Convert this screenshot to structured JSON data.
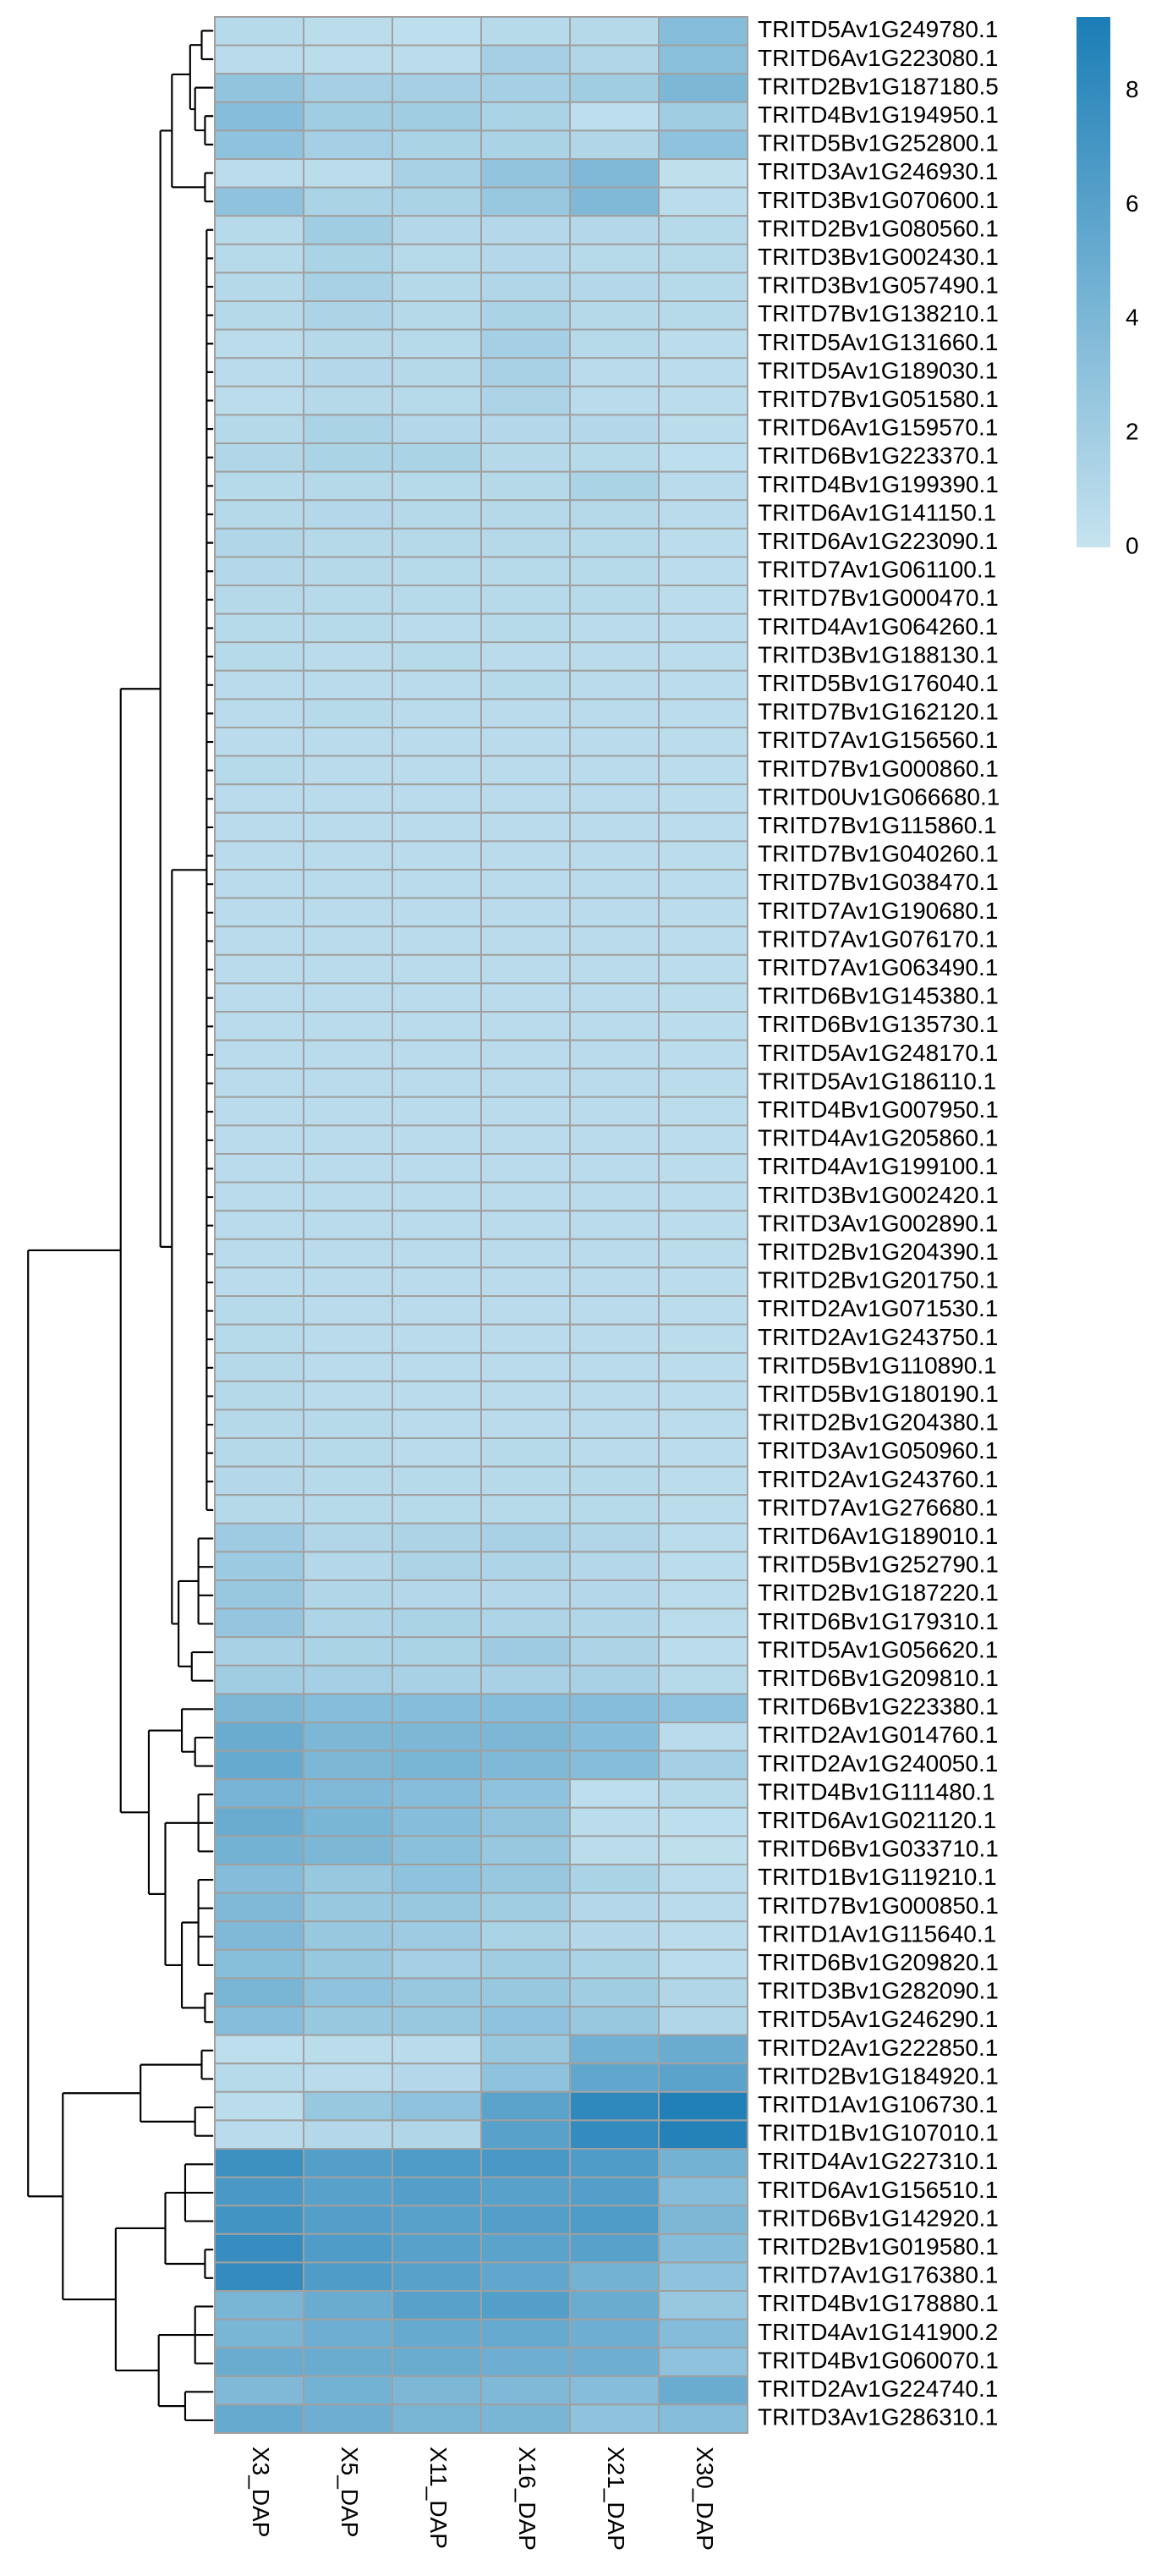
{
  "chart_data": {
    "type": "heatmap",
    "rows": [
      "TRITD5Av1G249780.1",
      "TRITD6Av1G223080.1",
      "TRITD2Bv1G187180.5",
      "TRITD4Bv1G194950.1",
      "TRITD5Bv1G252800.1",
      "TRITD3Av1G246930.1",
      "TRITD3Bv1G070600.1",
      "TRITD2Bv1G080560.1",
      "TRITD3Bv1G002430.1",
      "TRITD3Bv1G057490.1",
      "TRITD7Bv1G138210.1",
      "TRITD5Av1G131660.1",
      "TRITD5Av1G189030.1",
      "TRITD7Bv1G051580.1",
      "TRITD6Av1G159570.1",
      "TRITD6Bv1G223370.1",
      "TRITD4Bv1G199390.1",
      "TRITD6Av1G141150.1",
      "TRITD6Av1G223090.1",
      "TRITD7Av1G061100.1",
      "TRITD7Bv1G000470.1",
      "TRITD4Av1G064260.1",
      "TRITD3Bv1G188130.1",
      "TRITD5Bv1G176040.1",
      "TRITD7Bv1G162120.1",
      "TRITD7Av1G156560.1",
      "TRITD7Bv1G000860.1",
      "TRITD0Uv1G066680.1",
      "TRITD7Bv1G115860.1",
      "TRITD7Bv1G040260.1",
      "TRITD7Bv1G038470.1",
      "TRITD7Av1G190680.1",
      "TRITD7Av1G076170.1",
      "TRITD7Av1G063490.1",
      "TRITD6Bv1G145380.1",
      "TRITD6Bv1G135730.1",
      "TRITD5Av1G248170.1",
      "TRITD5Av1G186110.1",
      "TRITD4Bv1G007950.1",
      "TRITD4Av1G205860.1",
      "TRITD4Av1G199100.1",
      "TRITD3Bv1G002420.1",
      "TRITD3Av1G002890.1",
      "TRITD2Bv1G204390.1",
      "TRITD2Bv1G201750.1",
      "TRITD2Av1G071530.1",
      "TRITD2Av1G243750.1",
      "TRITD5Bv1G110890.1",
      "TRITD5Bv1G180190.1",
      "TRITD2Bv1G204380.1",
      "TRITD3Av1G050960.1",
      "TRITD2Av1G243760.1",
      "TRITD7Av1G276680.1",
      "TRITD6Av1G189010.1",
      "TRITD5Bv1G252790.1",
      "TRITD2Bv1G187220.1",
      "TRITD6Bv1G179310.1",
      "TRITD5Av1G056620.1",
      "TRITD6Bv1G209810.1",
      "TRITD6Bv1G223380.1",
      "TRITD2Av1G014760.1",
      "TRITD2Av1G240050.1",
      "TRITD4Bv1G111480.1",
      "TRITD6Av1G021120.1",
      "TRITD6Bv1G033710.1",
      "TRITD1Bv1G119210.1",
      "TRITD7Bv1G000850.1",
      "TRITD1Av1G115640.1",
      "TRITD6Bv1G209820.1",
      "TRITD3Bv1G282090.1",
      "TRITD5Av1G246290.1",
      "TRITD2Av1G222850.1",
      "TRITD2Bv1G184920.1",
      "TRITD1Av1G106730.1",
      "TRITD1Bv1G107010.1",
      "TRITD4Av1G227310.1",
      "TRITD6Av1G156510.1",
      "TRITD6Bv1G142920.1",
      "TRITD2Bv1G019580.1",
      "TRITD7Av1G176380.1",
      "TRITD4Bv1G178880.1",
      "TRITD4Av1G141900.2",
      "TRITD4Bv1G060070.1",
      "TRITD2Av1G224740.1",
      "TRITD3Av1G286310.1"
    ],
    "columns": [
      "X3_DAP",
      "X5_DAP",
      "X11_DAP",
      "X16_DAP",
      "X21_DAP",
      "X30_DAP"
    ],
    "values": [
      [
        0.8,
        0.6,
        0.5,
        0.8,
        0.9,
        3.5
      ],
      [
        0.7,
        0.6,
        0.6,
        1.8,
        1.2,
        3.2
      ],
      [
        2.8,
        1.8,
        1.8,
        1.8,
        2.0,
        4.0
      ],
      [
        3.5,
        2.0,
        2.0,
        1.5,
        0.5,
        2.0
      ],
      [
        3.0,
        1.8,
        1.5,
        1.5,
        1.2,
        3.0
      ],
      [
        0.6,
        0.6,
        1.6,
        2.8,
        3.8,
        0.4
      ],
      [
        3.0,
        1.5,
        1.5,
        2.5,
        3.8,
        0.6
      ],
      [
        0.8,
        2.0,
        1.0,
        1.0,
        1.0,
        0.8
      ],
      [
        0.8,
        1.5,
        0.8,
        1.0,
        0.8,
        0.8
      ],
      [
        0.9,
        1.6,
        0.9,
        1.2,
        1.0,
        0.8
      ],
      [
        0.9,
        1.4,
        0.9,
        1.5,
        0.9,
        0.8
      ],
      [
        0.6,
        0.9,
        0.8,
        1.8,
        0.8,
        0.6
      ],
      [
        0.7,
        1.0,
        0.9,
        1.6,
        0.7,
        0.6
      ],
      [
        0.6,
        0.9,
        0.8,
        1.4,
        0.7,
        0.6
      ],
      [
        0.9,
        1.5,
        1.0,
        1.0,
        1.0,
        0.6
      ],
      [
        1.2,
        1.5,
        1.5,
        0.9,
        0.8,
        0.5
      ],
      [
        0.8,
        0.9,
        0.8,
        0.9,
        1.5,
        0.7
      ],
      [
        0.9,
        1.0,
        0.9,
        0.9,
        0.9,
        0.7
      ],
      [
        1.2,
        0.9,
        0.9,
        0.9,
        0.8,
        0.6
      ],
      [
        1.0,
        0.9,
        0.8,
        0.8,
        0.8,
        0.6
      ],
      [
        0.9,
        0.8,
        0.8,
        0.8,
        0.8,
        0.6
      ],
      [
        0.8,
        0.8,
        0.7,
        0.8,
        0.7,
        0.6
      ],
      [
        0.8,
        0.7,
        0.8,
        0.7,
        0.7,
        0.6
      ],
      [
        0.7,
        0.7,
        0.7,
        0.8,
        0.7,
        0.6
      ],
      [
        0.7,
        0.8,
        0.7,
        0.7,
        0.7,
        0.6
      ],
      [
        0.7,
        0.7,
        0.7,
        0.7,
        0.7,
        0.6
      ],
      [
        0.8,
        0.7,
        0.7,
        0.7,
        0.7,
        0.6
      ],
      [
        0.7,
        0.7,
        0.7,
        0.7,
        0.7,
        0.6
      ],
      [
        0.7,
        0.7,
        0.7,
        0.7,
        0.7,
        0.6
      ],
      [
        0.7,
        0.7,
        0.7,
        0.7,
        0.7,
        0.6
      ],
      [
        0.7,
        0.7,
        0.7,
        0.7,
        0.7,
        0.6
      ],
      [
        0.7,
        0.7,
        0.7,
        0.7,
        0.7,
        0.6
      ],
      [
        0.7,
        0.7,
        0.7,
        0.7,
        0.7,
        0.6
      ],
      [
        0.7,
        0.7,
        0.7,
        0.7,
        0.7,
        0.6
      ],
      [
        0.7,
        0.7,
        0.7,
        0.7,
        0.7,
        0.6
      ],
      [
        0.7,
        0.7,
        0.7,
        0.7,
        0.7,
        0.6
      ],
      [
        0.7,
        0.7,
        0.7,
        0.7,
        0.7,
        0.6
      ],
      [
        0.7,
        0.7,
        0.7,
        0.7,
        0.7,
        0.6
      ],
      [
        0.7,
        0.7,
        0.7,
        0.7,
        0.7,
        0.6
      ],
      [
        0.7,
        0.7,
        0.7,
        0.7,
        0.7,
        0.6
      ],
      [
        0.7,
        0.7,
        0.7,
        0.7,
        0.7,
        0.6
      ],
      [
        0.7,
        0.7,
        0.7,
        0.7,
        0.7,
        0.6
      ],
      [
        0.7,
        0.7,
        0.7,
        0.7,
        0.7,
        0.6
      ],
      [
        0.7,
        0.7,
        0.7,
        0.7,
        0.7,
        0.6
      ],
      [
        0.7,
        0.7,
        0.7,
        0.7,
        0.7,
        0.6
      ],
      [
        0.8,
        0.7,
        0.7,
        0.7,
        0.7,
        0.6
      ],
      [
        0.8,
        0.7,
        0.7,
        0.7,
        0.7,
        0.6
      ],
      [
        0.9,
        0.7,
        0.7,
        0.7,
        0.7,
        0.6
      ],
      [
        0.9,
        0.7,
        0.7,
        0.7,
        0.7,
        0.6
      ],
      [
        0.9,
        0.8,
        0.7,
        0.7,
        0.7,
        0.6
      ],
      [
        0.9,
        0.8,
        0.7,
        0.8,
        0.7,
        0.6
      ],
      [
        1.0,
        0.8,
        0.8,
        0.8,
        0.8,
        0.6
      ],
      [
        0.9,
        0.8,
        0.8,
        0.8,
        0.8,
        0.6
      ],
      [
        2.2,
        1.2,
        1.4,
        1.6,
        1.2,
        0.6
      ],
      [
        2.3,
        1.0,
        1.4,
        1.3,
        1.0,
        0.6
      ],
      [
        2.5,
        1.2,
        1.0,
        1.0,
        1.0,
        0.6
      ],
      [
        2.6,
        1.3,
        1.5,
        1.3,
        1.2,
        0.6
      ],
      [
        1.6,
        1.5,
        1.5,
        2.2,
        1.4,
        0.6
      ],
      [
        2.0,
        1.8,
        1.6,
        1.6,
        1.6,
        0.8
      ],
      [
        4.0,
        3.5,
        3.5,
        3.5,
        3.5,
        3.0
      ],
      [
        5.0,
        4.0,
        4.0,
        4.0,
        3.5,
        0.7
      ],
      [
        5.2,
        4.0,
        4.2,
        3.8,
        3.5,
        1.8
      ],
      [
        4.3,
        3.8,
        3.5,
        3.0,
        0.5,
        0.8
      ],
      [
        5.0,
        4.2,
        3.5,
        2.8,
        0.6,
        0.5
      ],
      [
        4.5,
        4.0,
        3.2,
        2.5,
        0.6,
        0.4
      ],
      [
        3.6,
        2.5,
        3.0,
        2.5,
        1.5,
        0.6
      ],
      [
        3.8,
        2.5,
        2.5,
        2.0,
        1.0,
        0.7
      ],
      [
        3.8,
        2.5,
        2.2,
        1.5,
        1.0,
        0.6
      ],
      [
        3.4,
        2.5,
        1.8,
        2.0,
        1.5,
        0.6
      ],
      [
        4.2,
        3.0,
        2.5,
        2.5,
        2.0,
        1.2
      ],
      [
        3.5,
        2.5,
        2.5,
        3.0,
        2.5,
        1.2
      ],
      [
        0.5,
        0.6,
        0.7,
        2.5,
        4.6,
        5.0
      ],
      [
        0.8,
        0.7,
        1.0,
        3.0,
        5.5,
        5.8
      ],
      [
        0.6,
        2.5,
        3.0,
        5.8,
        8.2,
        9.0
      ],
      [
        0.7,
        1.0,
        1.2,
        6.0,
        8.0,
        8.8
      ],
      [
        7.5,
        6.2,
        6.5,
        6.8,
        6.5,
        4.5
      ],
      [
        6.8,
        6.0,
        6.2,
        6.0,
        6.2,
        3.5
      ],
      [
        7.2,
        6.2,
        6.0,
        6.2,
        6.5,
        4.0
      ],
      [
        7.8,
        6.5,
        6.0,
        5.8,
        6.0,
        3.6
      ],
      [
        8.0,
        6.5,
        6.0,
        5.5,
        4.5,
        3.0
      ],
      [
        4.2,
        5.0,
        6.0,
        6.2,
        5.0,
        2.5
      ],
      [
        4.2,
        4.8,
        5.2,
        5.2,
        4.8,
        3.6
      ],
      [
        5.0,
        5.0,
        5.0,
        4.8,
        4.8,
        3.0
      ],
      [
        3.8,
        4.5,
        4.0,
        3.8,
        3.5,
        5.0
      ],
      [
        5.2,
        4.8,
        4.2,
        4.2,
        3.0,
        3.5
      ]
    ],
    "colors": [
      "#c6e3ef",
      "#1b7db6"
    ],
    "zlim": [
      0,
      9.3
    ],
    "zticks": [
      0,
      2,
      4,
      6,
      8
    ],
    "cell_border": "#a0a0a0"
  }
}
